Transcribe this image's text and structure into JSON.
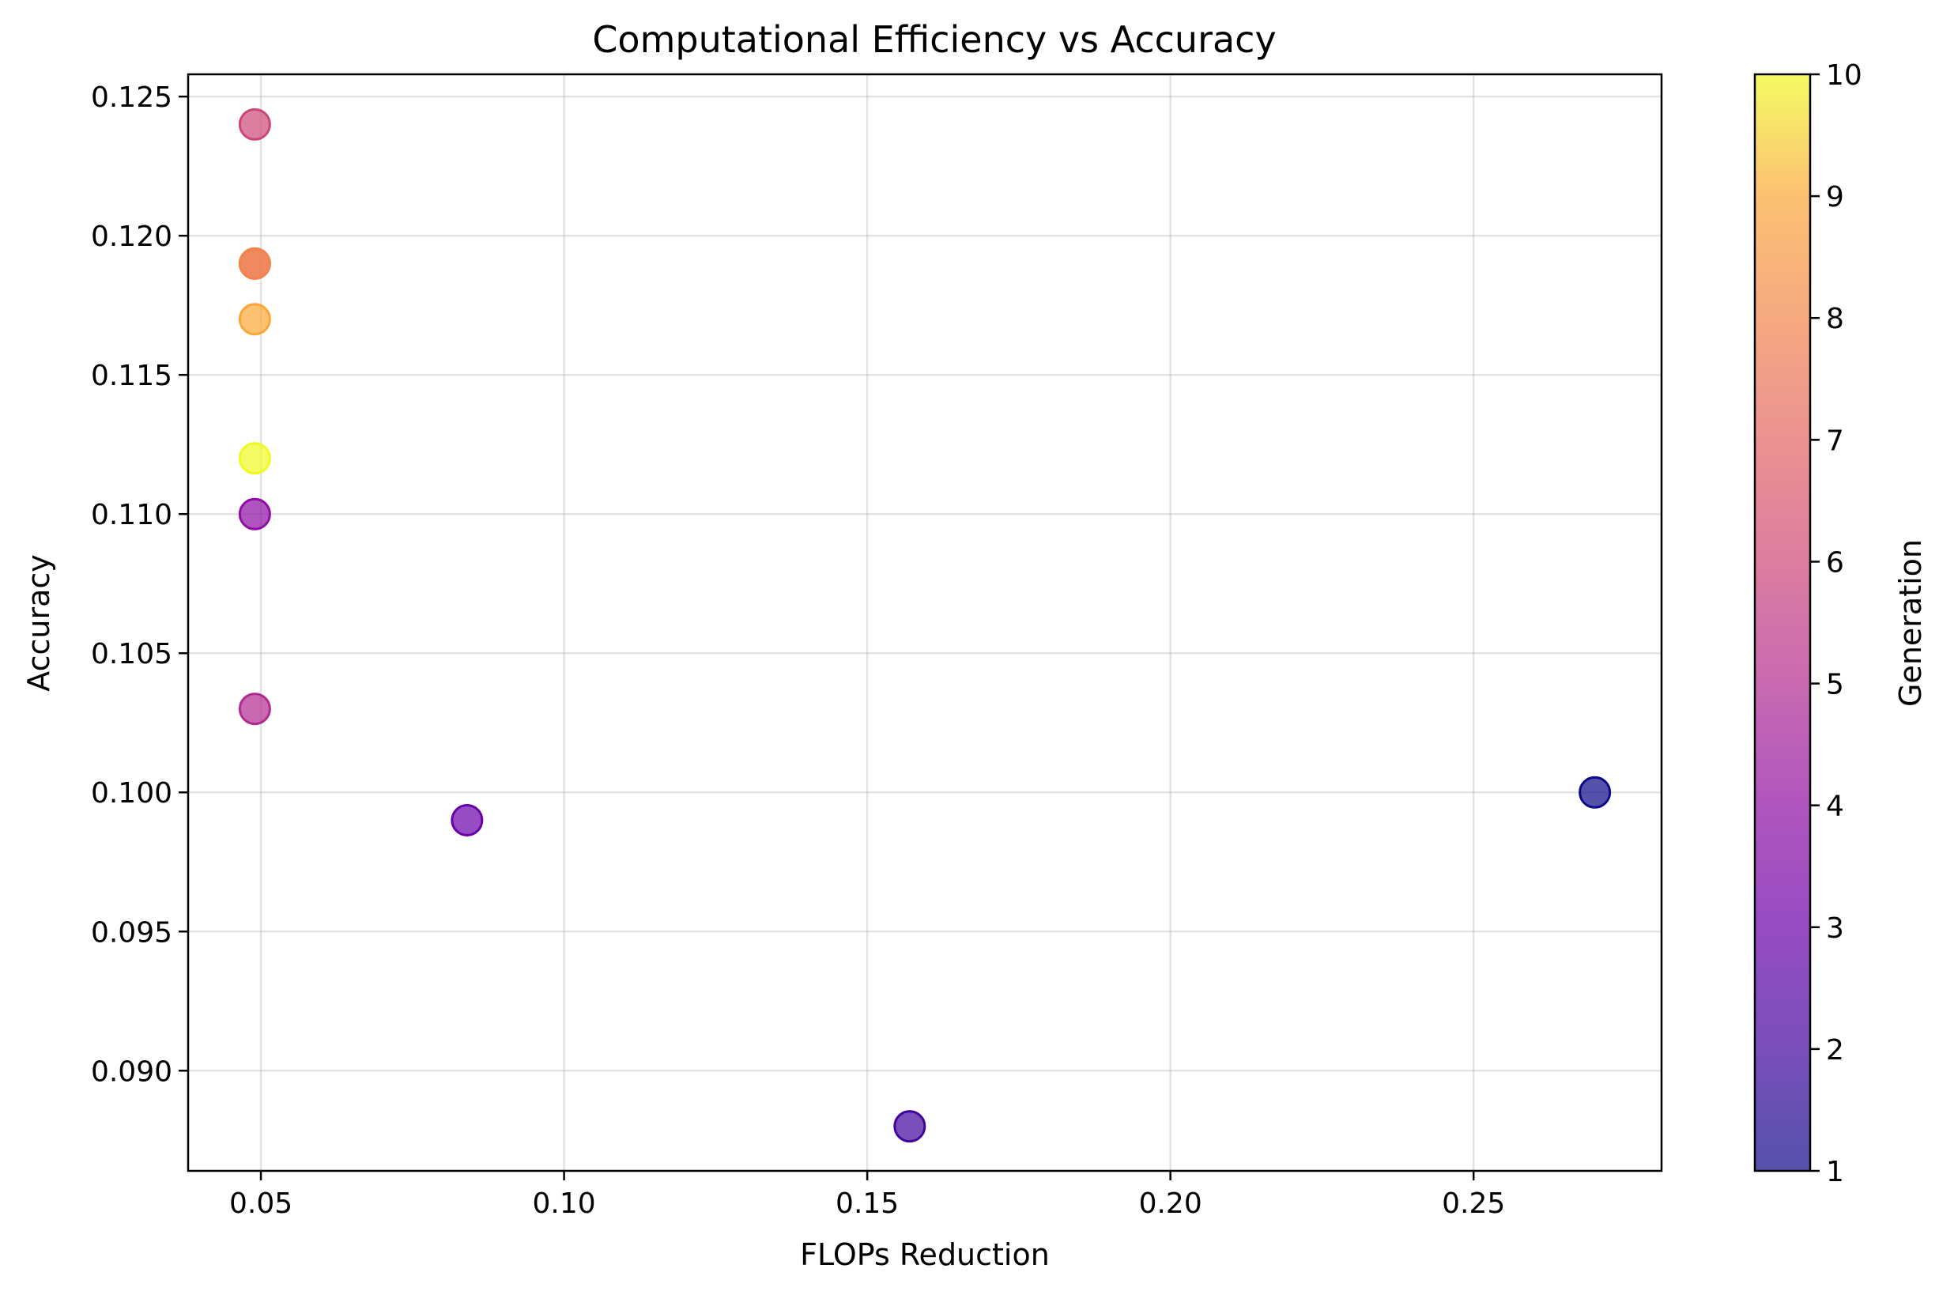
{
  "chart_data": {
    "type": "scatter",
    "title": "Computational Efficiency vs Accuracy",
    "xlabel": "FLOPs Reduction",
    "ylabel": "Accuracy",
    "xlim": [
      0.038,
      0.281
    ],
    "ylim": [
      0.0864,
      0.1258
    ],
    "xticks": [
      "0.05",
      "0.10",
      "0.15",
      "0.20",
      "0.25"
    ],
    "yticks": [
      "0.090",
      "0.095",
      "0.100",
      "0.105",
      "0.110",
      "0.115",
      "0.120",
      "0.125"
    ],
    "grid": true,
    "colormap": "plasma",
    "colorbar": {
      "label": "Generation",
      "min": 1,
      "max": 10,
      "ticks": [
        "1",
        "2",
        "3",
        "4",
        "5",
        "6",
        "7",
        "8",
        "9",
        "10"
      ]
    },
    "points": [
      {
        "x": 0.27,
        "y": 0.1,
        "generation": 1
      },
      {
        "x": 0.157,
        "y": 0.088,
        "generation": 2
      },
      {
        "x": 0.084,
        "y": 0.099,
        "generation": 3
      },
      {
        "x": 0.049,
        "y": 0.11,
        "generation": 4
      },
      {
        "x": 0.049,
        "y": 0.103,
        "generation": 5
      },
      {
        "x": 0.049,
        "y": 0.124,
        "generation": 6
      },
      {
        "x": 0.049,
        "y": 0.119,
        "generation": 7
      },
      {
        "x": 0.049,
        "y": 0.119,
        "generation": 8
      },
      {
        "x": 0.049,
        "y": 0.117,
        "generation": 9
      },
      {
        "x": 0.049,
        "y": 0.112,
        "generation": 10
      }
    ]
  }
}
